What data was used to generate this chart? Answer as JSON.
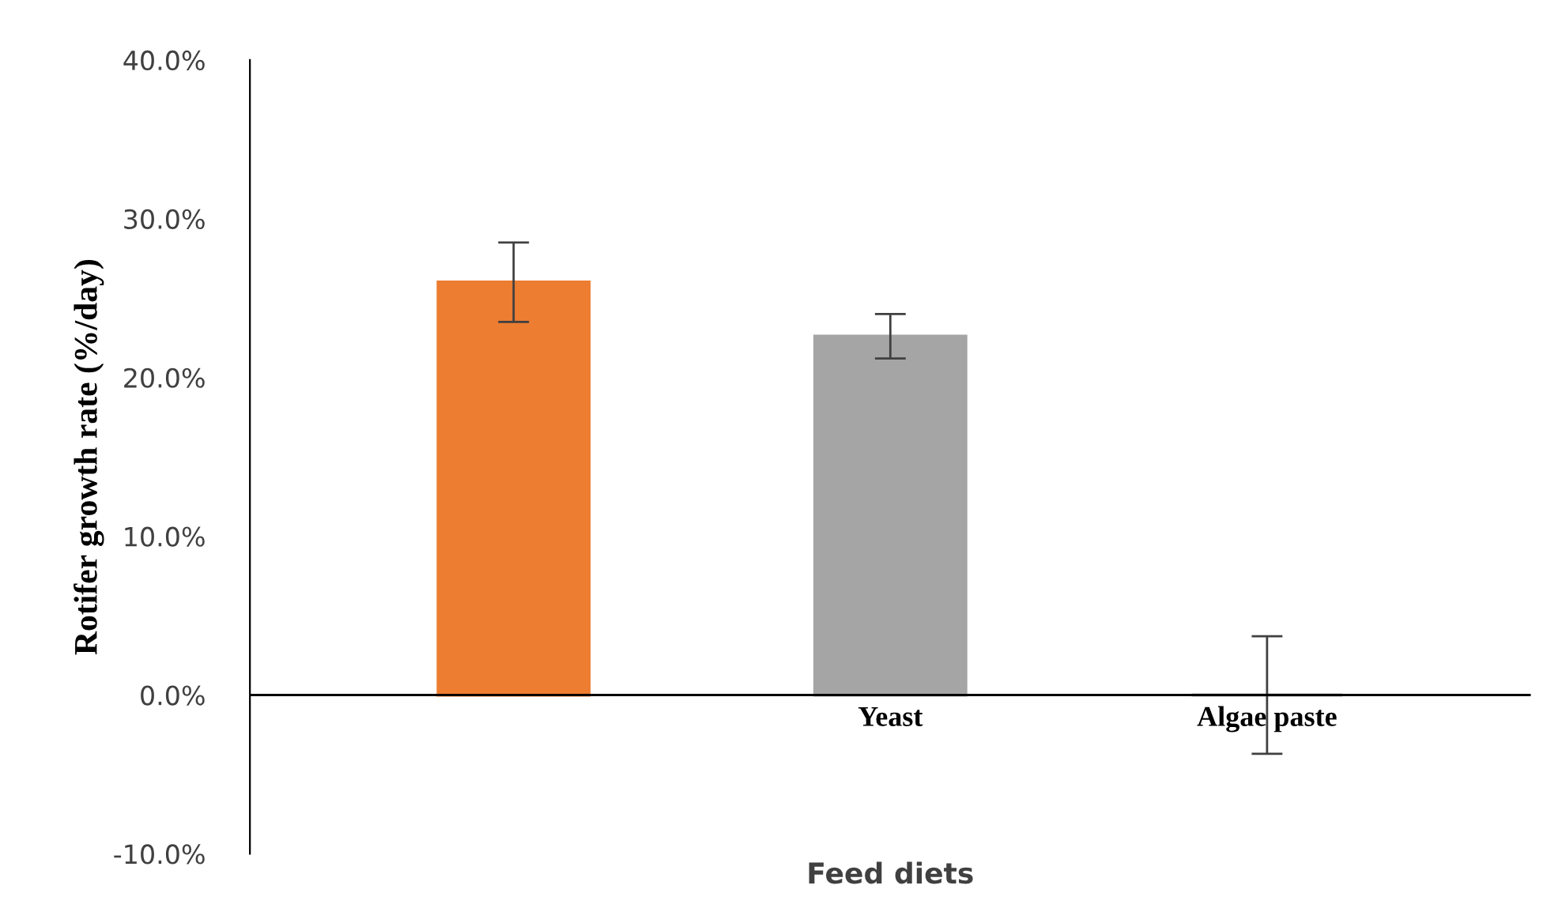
{
  "chart_data": {
    "type": "bar",
    "xlabel": "Feed diets",
    "ylabel": "Rotifer growth rate (%/day)",
    "categories": [
      null,
      "Yeast",
      "Algae paste"
    ],
    "values": [
      26.0,
      22.6,
      0.0
    ],
    "colors": [
      "#ed7d31",
      "#a5a5a5",
      "#a5a5a5"
    ],
    "errors": [
      2.5,
      1.4,
      3.7
    ],
    "ylim": [
      -10,
      40
    ],
    "yticks": [
      {
        "value": -10,
        "label": "-10.0%"
      },
      {
        "value": 0,
        "label": "0.0%"
      },
      {
        "value": 10,
        "label": "10.0%"
      },
      {
        "value": 20,
        "label": "20.0%"
      },
      {
        "value": 30,
        "label": "30.0%"
      },
      {
        "value": 40,
        "label": "40.0%"
      }
    ],
    "grid": false,
    "legend": false
  }
}
